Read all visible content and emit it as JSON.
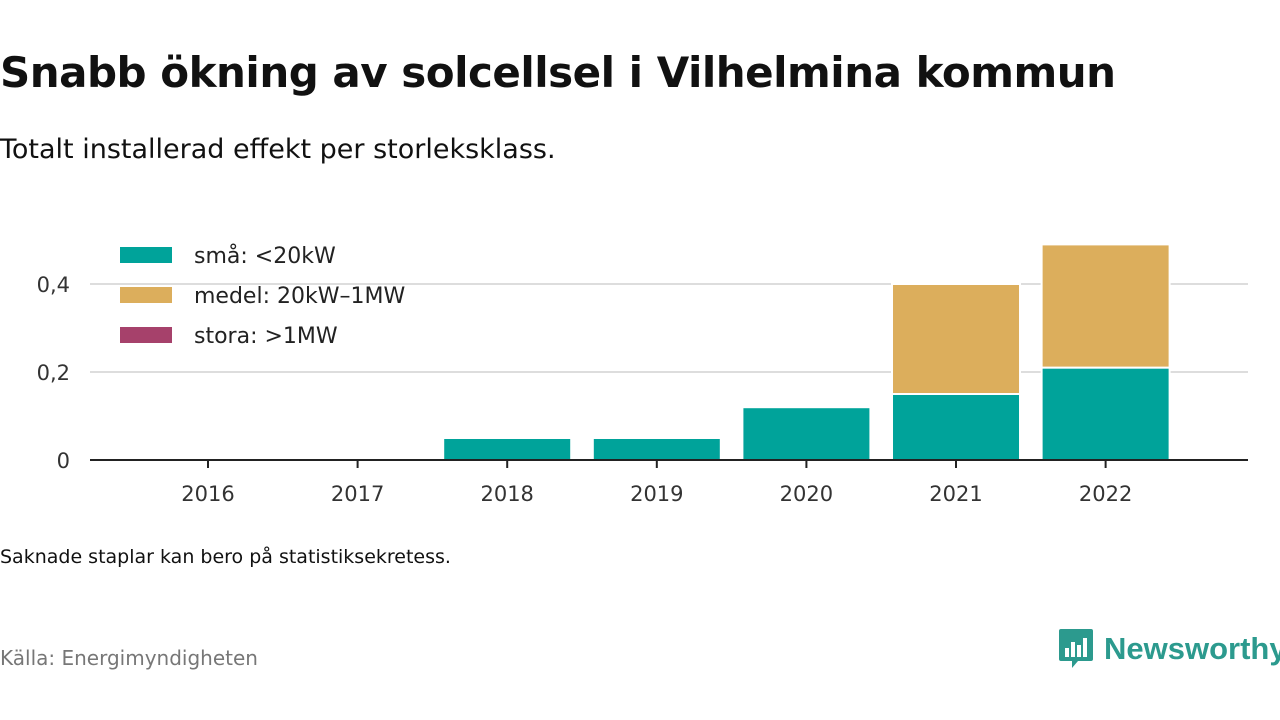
{
  "title": "Snabb ökning av solcellsel i Vilhelmina kommun",
  "subtitle": "Totalt installerad effekt per storleksklass.",
  "note": "Saknade staplar kan bero på statistiksekretess.",
  "source": "Källa: Energimyndigheten",
  "brand": "Newsworthy",
  "colors": {
    "small": "#00a39a",
    "medium": "#dcae5c",
    "large": "#a6416b",
    "grid": "#dddddd",
    "axis": "#222222",
    "brand": "#2c9a8e"
  },
  "chart_data": {
    "type": "bar",
    "stacked": true,
    "categories": [
      "2016",
      "2017",
      "2018",
      "2019",
      "2020",
      "2021",
      "2022"
    ],
    "series": [
      {
        "name": "små: <20kW",
        "color": "#00a39a",
        "values": [
          0,
          0,
          0.05,
          0.05,
          0.12,
          0.15,
          0.21
        ]
      },
      {
        "name": "medel: 20kW–1MW",
        "color": "#dcae5c",
        "values": [
          0,
          0,
          0,
          0,
          0,
          0.25,
          0.28
        ]
      },
      {
        "name": "stora: >1MW",
        "color": "#a6416b",
        "values": [
          0,
          0,
          0,
          0,
          0,
          0,
          0
        ]
      }
    ],
    "y_ticks": [
      {
        "value": 0,
        "label": "0"
      },
      {
        "value": 0.2,
        "label": "0,2"
      },
      {
        "value": 0.4,
        "label": "0,4"
      }
    ],
    "ylim": [
      0,
      0.5
    ],
    "grid": true,
    "legend_position": "top-left"
  }
}
